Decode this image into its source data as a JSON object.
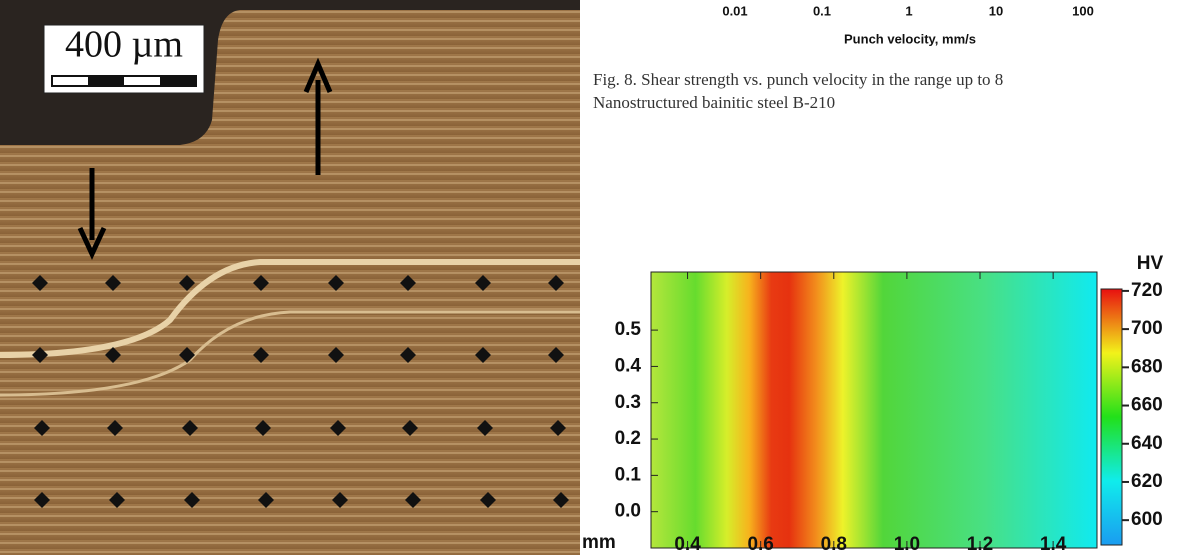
{
  "micrograph": {
    "scale_label": "400 µm"
  },
  "velocity_chart": {
    "xticks": [
      0.01,
      0.1,
      1,
      10,
      100
    ],
    "xlim": [
      0.001,
      1000
    ],
    "log_scale": true,
    "xlabel": "Punch velocity, mm/s"
  },
  "caption": [
    "Fig. 8. Shear strength vs. punch velocity in the range up to 8",
    "Nanostructured bainitic steel B-210"
  ],
  "hardness_map": {
    "xticks": [
      0.4,
      0.6,
      0.8,
      {
        "value": 1,
        "label": "1.0"
      },
      1.2,
      1.4
    ],
    "xlim": [
      0.3,
      1.52
    ],
    "yticks": [
      {
        "value": 0,
        "label": "0.0"
      },
      0.1,
      0.2,
      0.3,
      0.4,
      0.5
    ],
    "ylim": [
      -0.1,
      0.66
    ],
    "axis_unit": "mm",
    "colorbar": {
      "label": "HV",
      "ticks": [
        600,
        620,
        640,
        660,
        680,
        700,
        720
      ],
      "lim": [
        587,
        721
      ]
    }
  }
}
